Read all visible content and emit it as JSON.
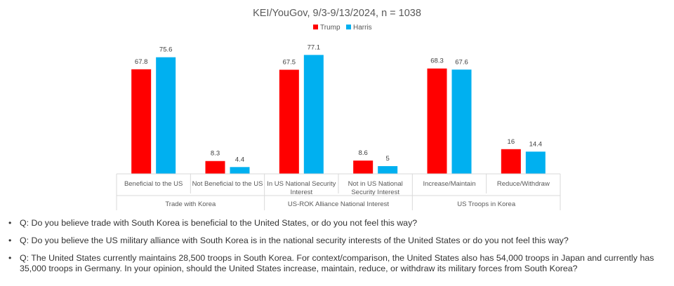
{
  "chart_data": {
    "type": "bar",
    "title": "KEI/YouGov, 9/3-9/13/2024,  n = 1038",
    "series": [
      {
        "name": "Trump",
        "color": "#ff0000",
        "values": [
          67.8,
          8.3,
          67.5,
          8.6,
          68.3,
          16
        ]
      },
      {
        "name": "Harris",
        "color": "#00b0f0",
        "values": [
          75.6,
          4.4,
          77.1,
          5,
          67.6,
          14.4
        ]
      }
    ],
    "value_labels": {
      "Trump": [
        "67.8",
        "8.3",
        "67.5",
        "8.6",
        "68.3",
        "16"
      ],
      "Harris": [
        "75.6",
        "4.4",
        "77.1",
        "5",
        "67.6",
        "14.4"
      ]
    },
    "categories": [
      [
        "Beneficial to the US"
      ],
      [
        "Not Beneficial to the US"
      ],
      [
        "In US National Security",
        "Interest"
      ],
      [
        "Not in US National",
        "Security Interest"
      ],
      [
        "Increase/Maintain"
      ],
      [
        "Reduce/Withdraw"
      ]
    ],
    "groups": [
      "Trade with Korea",
      "US-ROK Alliance National Interest",
      "US Troops in Korea"
    ],
    "ylim": [
      0,
      80
    ],
    "legend_position": "top-center",
    "grid": false
  },
  "questions": [
    {
      "bullet": "•",
      "text": "Q: Do you believe trade with South Korea is beneficial to the United States, or do you not feel this way?"
    },
    {
      "bullet": "•",
      "text": "Q: Do you believe the US military alliance with South Korea is in the national security interests of the United States or do you not feel this way?"
    },
    {
      "bullet": "•",
      "text": "Q: The United States currently maintains 28,500 troops in South Korea. For context/comparison, the United States also has 54,000 troops in Japan and currently has 35,000 troops in Germany. In your opinion, should the United States increase, maintain, reduce, or withdraw its military forces from South Korea?"
    }
  ]
}
